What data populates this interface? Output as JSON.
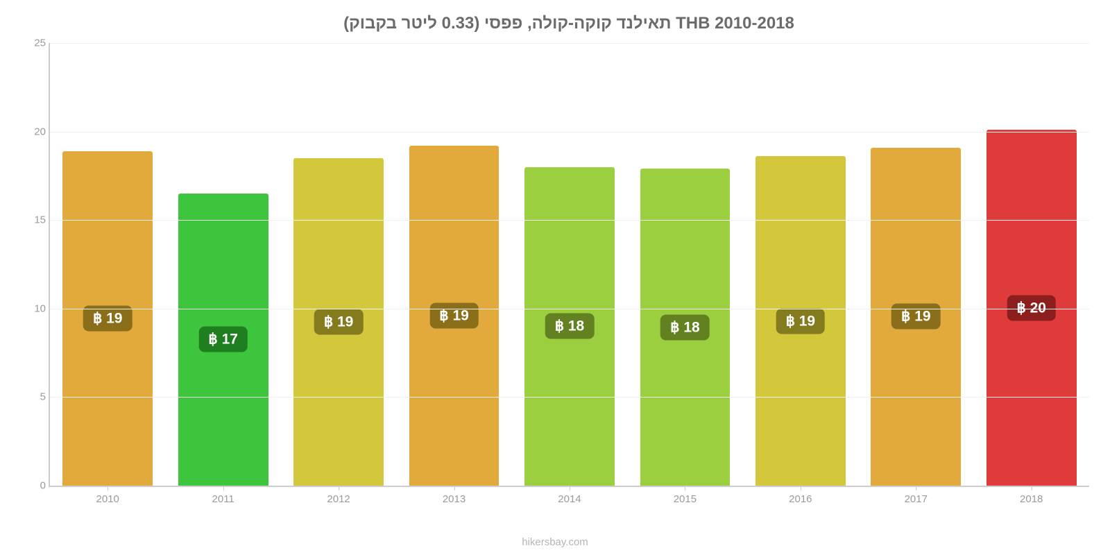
{
  "chart": {
    "type": "bar",
    "title": "תאילנד קוקה-קולה, פפסי (0.33 ליטר בקבוק) THB 2010-2018",
    "title_fontsize": 24,
    "title_color": "#6b6b6b",
    "background_color": "#ffffff",
    "grid_color": "#f0f0f0",
    "axis_color": "#cccccc",
    "tick_font_color": "#9a9a9a",
    "tick_fontsize": 15,
    "label_fontsize": 21,
    "bar_width_pct": 78,
    "ylim": [
      0,
      25
    ],
    "ytick_step": 5,
    "yticks": [
      0,
      5,
      10,
      15,
      20,
      25
    ],
    "categories": [
      "2010",
      "2011",
      "2012",
      "2013",
      "2014",
      "2015",
      "2016",
      "2017",
      "2018"
    ],
    "values": [
      18.9,
      16.5,
      18.5,
      19.2,
      18.0,
      17.9,
      18.6,
      19.1,
      20.1
    ],
    "value_labels": [
      "฿ 19",
      "฿ 17",
      "฿ 19",
      "฿ 19",
      "฿ 18",
      "฿ 18",
      "฿ 19",
      "฿ 19",
      "฿ 20"
    ],
    "bar_colors": [
      "#e2aa3c",
      "#3dc63d",
      "#d3c83c",
      "#e2aa3c",
      "#9ccf3f",
      "#9ccf3f",
      "#d3c83c",
      "#e2aa3c",
      "#e03b3b"
    ],
    "label_bg_colors": [
      "#8a6e19",
      "#1f7e1f",
      "#837b1e",
      "#8a6e19",
      "#628221",
      "#628221",
      "#837b1e",
      "#8a6e19",
      "#8c1e1e"
    ]
  },
  "footer": {
    "text": "hikersbay.com",
    "color": "#b5b5b5",
    "fontsize": 15
  }
}
